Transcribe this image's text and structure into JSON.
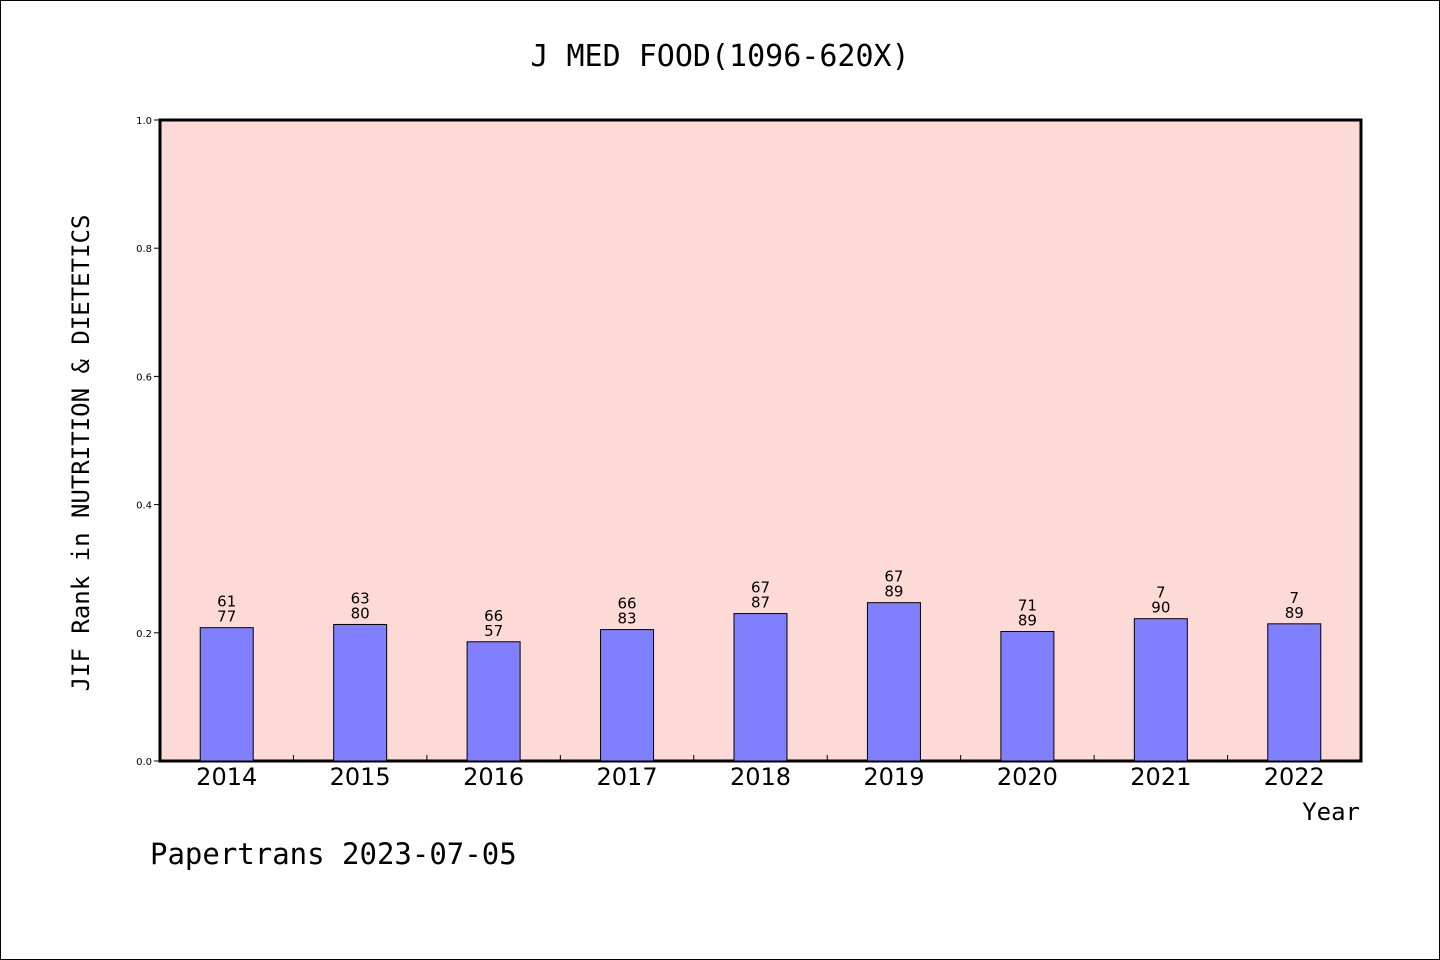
{
  "chart_data": {
    "type": "bar",
    "title": "J MED FOOD(1096-620X)",
    "xlabel": "Year",
    "ylabel": "JIF Rank in NUTRITION & DIETETICS",
    "ylim": [
      0,
      1.0
    ],
    "yticks": [
      "0.0",
      "0.2",
      "0.4",
      "0.6",
      "0.8",
      "1.0"
    ],
    "grid": false,
    "colors": {
      "plot_background": "#fddad6",
      "bar": "#8080ff"
    },
    "categories": [
      "2014",
      "2015",
      "2016",
      "2017",
      "2018",
      "2019",
      "2020",
      "2021",
      "2022"
    ],
    "values": [
      0.208,
      0.213,
      0.186,
      0.205,
      0.23,
      0.247,
      0.202,
      0.222,
      0.214
    ],
    "bar_labels": [
      [
        "61",
        "77"
      ],
      [
        "63",
        "80"
      ],
      [
        "66",
        "57"
      ],
      [
        "66",
        "83"
      ],
      [
        "67",
        "87"
      ],
      [
        "67",
        "89"
      ],
      [
        "71",
        "89"
      ],
      [
        "7",
        "90"
      ],
      [
        "7",
        "89"
      ]
    ]
  },
  "footer": "Papertrans 2023-07-05"
}
